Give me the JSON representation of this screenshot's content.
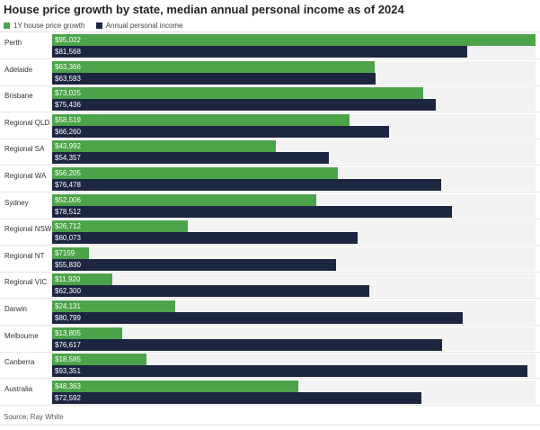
{
  "title": "House price growth by state, median annual personal income as of 2024",
  "source": "Source: Ray White",
  "colors": {
    "green": "#4ca34a",
    "navy": "#1c2640"
  },
  "chart_data": {
    "type": "bar",
    "orientation": "horizontal",
    "xlim": [
      0,
      95022
    ],
    "categories": [
      "Perth",
      "Adelaide",
      "Brisbane",
      "Regional QLD",
      "Regional SA",
      "Regional WA",
      "Sydney",
      "Regional NSW",
      "Regional NT",
      "Regional VIC",
      "Darwin",
      "Melbourne",
      "Canberra",
      "Australia"
    ],
    "series": [
      {
        "name": "1Y house price growth",
        "values": [
          95022,
          63366,
          73025,
          58519,
          43992,
          56205,
          52006,
          26712,
          7159,
          11920,
          24131,
          13805,
          18585,
          48363
        ],
        "labels": [
          "$95,022",
          "$63,366",
          "$73,025",
          "$58,519",
          "$43,992",
          "$56,205",
          "$52,006",
          "$26,712",
          "$7159",
          "$11,920",
          "$24,131",
          "$13,805",
          "$18,585",
          "$48,363"
        ]
      },
      {
        "name": "Annual personal income",
        "values": [
          81568,
          63593,
          75436,
          66260,
          54357,
          76478,
          78512,
          60073,
          55830,
          62300,
          80799,
          76617,
          93351,
          72592
        ],
        "labels": [
          "$81,568",
          "$63,593",
          "$75,436",
          "$66,260",
          "$54,357",
          "$76,478",
          "$78,512",
          "$60,073",
          "$55,830",
          "$62,300",
          "$80,799",
          "$76,617",
          "$93,351",
          "$72,592"
        ]
      }
    ]
  }
}
